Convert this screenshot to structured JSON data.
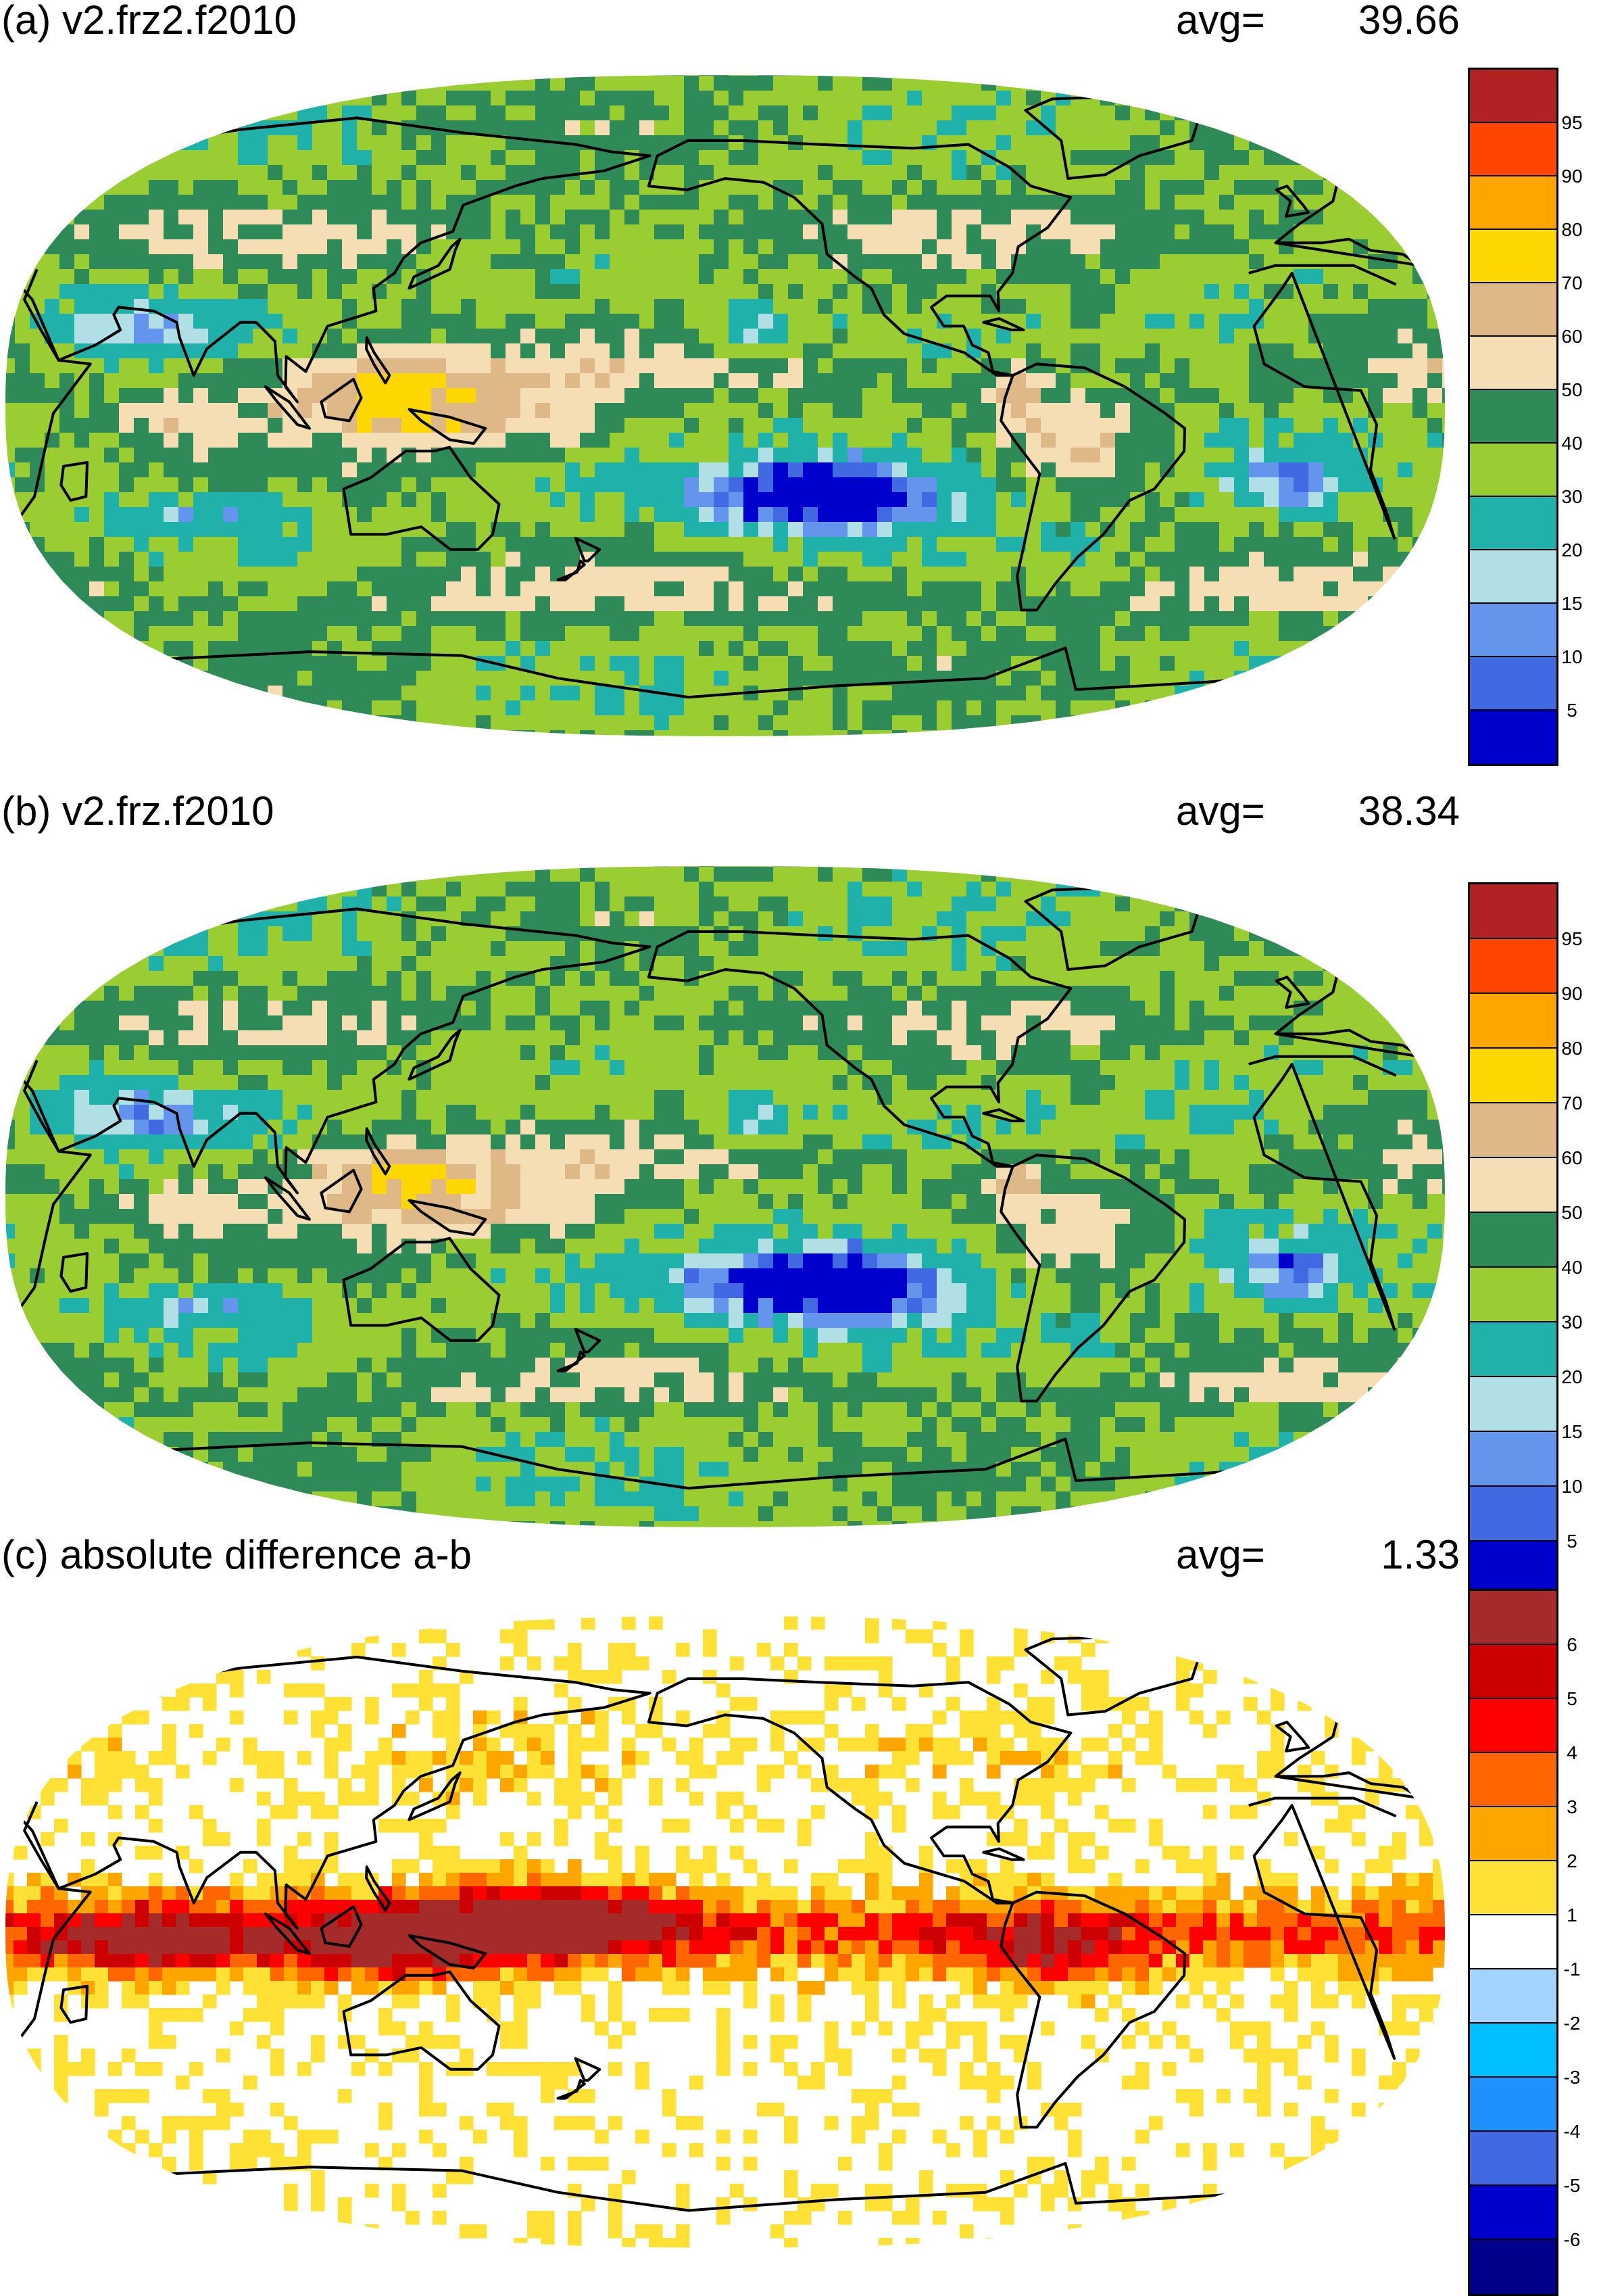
{
  "panels": [
    {
      "title": "(a) v2.frz2.f2010",
      "avg_label": "avg=",
      "avg_value": "39.66",
      "colorbar": {
        "labels": [
          "95",
          "90",
          "80",
          "70",
          "60",
          "50",
          "40",
          "30",
          "20",
          "15",
          "10",
          "5"
        ],
        "colors": [
          "#b22222",
          "#ff4500",
          "#ffa500",
          "#ffd700",
          "#deb887",
          "#f5deb3",
          "#2e8b57",
          "#9acd32",
          "#20b2aa",
          "#b0e0e6",
          "#6495ed",
          "#4169e1",
          "#0000cd"
        ]
      }
    },
    {
      "title": "(b) v2.frz.f2010",
      "avg_label": "avg=",
      "avg_value": "38.34",
      "colorbar": {
        "labels": [
          "95",
          "90",
          "80",
          "70",
          "60",
          "50",
          "40",
          "30",
          "20",
          "15",
          "10",
          "5"
        ],
        "colors": [
          "#b22222",
          "#ff4500",
          "#ffa500",
          "#ffd700",
          "#deb887",
          "#f5deb3",
          "#2e8b57",
          "#9acd32",
          "#20b2aa",
          "#b0e0e6",
          "#6495ed",
          "#4169e1",
          "#0000cd"
        ]
      }
    },
    {
      "title": "(c) absolute difference a-b",
      "avg_label": "avg=",
      "avg_value": "1.33",
      "colorbar": {
        "labels": [
          "6",
          "5",
          "4",
          "3",
          "2",
          "1",
          "-1",
          "-2",
          "-3",
          "-4",
          "-5",
          "-6"
        ],
        "colors": [
          "#a52a2a",
          "#cc0000",
          "#ff0000",
          "#ff6600",
          "#ffa500",
          "#ffe135",
          "#ffffff",
          "#a3d3ff",
          "#00bfff",
          "#1e90ff",
          "#4169e1",
          "#0000cd",
          "#00008b"
        ]
      }
    }
  ]
}
